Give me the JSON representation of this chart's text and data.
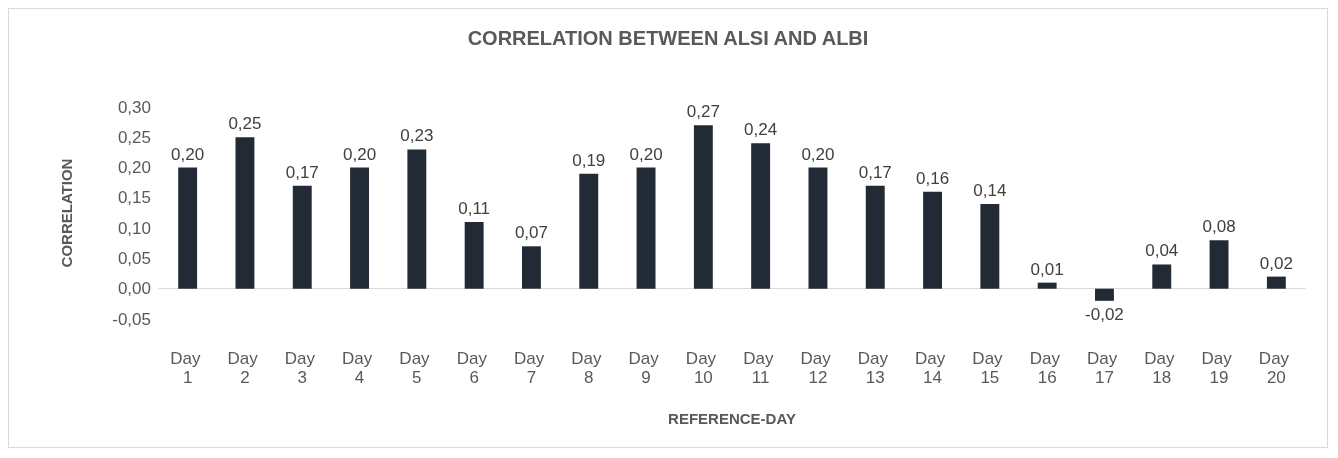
{
  "chart_data": {
    "type": "bar",
    "title": "CORRELATION BETWEEN ALSI AND ALBI",
    "xlabel": "REFERENCE-DAY",
    "ylabel": "CORRELATION",
    "categories": [
      "Day 1",
      "Day 2",
      "Day 3",
      "Day 4",
      "Day 5",
      "Day 6",
      "Day 7",
      "Day 8",
      "Day 9",
      "Day 10",
      "Day 11",
      "Day 12",
      "Day 13",
      "Day 14",
      "Day 15",
      "Day 16",
      "Day 17",
      "Day 18",
      "Day 19",
      "Day 20"
    ],
    "values": [
      0.2,
      0.25,
      0.17,
      0.2,
      0.23,
      0.11,
      0.07,
      0.19,
      0.2,
      0.27,
      0.24,
      0.2,
      0.17,
      0.16,
      0.14,
      0.01,
      -0.02,
      0.04,
      0.08,
      0.02
    ],
    "value_labels": [
      "0,20",
      "0,25",
      "0,17",
      "0,20",
      "0,23",
      "0,11",
      "0,07",
      "0,19",
      "0,20",
      "0,27",
      "0,24",
      "0,20",
      "0,17",
      "0,16",
      "0,14",
      "0,01",
      "-0,02",
      "0,04",
      "0,08",
      "0,02"
    ],
    "color": "#222a35",
    "ylim": [
      -0.05,
      0.3
    ],
    "yticks": [
      {
        "value": -0.05,
        "label": "-0,05"
      },
      {
        "value": 0,
        "label": "0,00"
      },
      {
        "value": 0.05,
        "label": "0,05"
      },
      {
        "value": 0.1,
        "label": "0,10"
      },
      {
        "value": 0.15,
        "label": "0,15"
      },
      {
        "value": 0.2,
        "label": "0,20"
      },
      {
        "value": 0.25,
        "label": "0,25"
      },
      {
        "value": 0.3,
        "label": "0,30"
      }
    ]
  }
}
